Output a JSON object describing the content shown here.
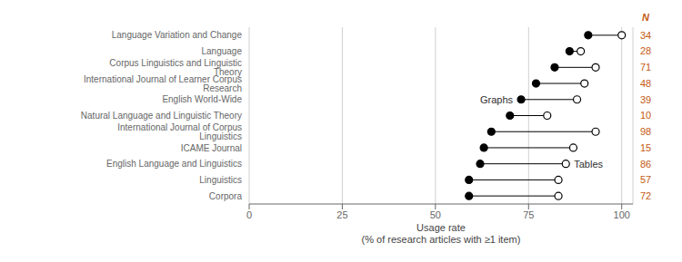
{
  "chart_data": {
    "type": "dumbbell",
    "xlabel": "Usage rate\n(% of research articles with ≥1 item)",
    "categories": [
      "Language Variation and Change",
      "Language",
      "Corpus Linguistics and Linguistic Theory",
      "International Journal of Learner Corpus Research",
      "English World-Wide",
      "Natural Language and Linguistic Theory",
      "International Journal of Corpus Linguistics",
      "ICAME Journal",
      "English Language and Linguistics",
      "Linguistics",
      "Corpora"
    ],
    "series": [
      {
        "name": "Graphs",
        "color": "#000000",
        "marker": "filled",
        "values": [
          91,
          86,
          82,
          77,
          73,
          70,
          65,
          63,
          62,
          59,
          59
        ]
      },
      {
        "name": "Tables",
        "color": "#000000",
        "marker": "open",
        "values": [
          100,
          89,
          93,
          90,
          88,
          80,
          93,
          87,
          85,
          83,
          83
        ]
      }
    ],
    "n_column": {
      "title": "N",
      "color": "#C55A11",
      "values": [
        34,
        28,
        71,
        48,
        39,
        10,
        98,
        15,
        86,
        57,
        72
      ]
    },
    "xlim": [
      0,
      103
    ],
    "xticks": [
      0,
      25,
      50,
      75,
      100
    ],
    "grid": true
  }
}
